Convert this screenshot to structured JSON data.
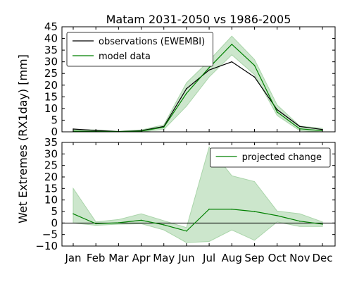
{
  "chart_data": {
    "title": "Matam 2031-2050 vs 1986-2005",
    "ylabel": "Wet Extremes (RX1day) [mm]",
    "categories": [
      "Jan",
      "Feb",
      "Mar",
      "Apr",
      "May",
      "Jun",
      "Jul",
      "Aug",
      "Sep",
      "Oct",
      "Nov",
      "Dec"
    ],
    "panels": [
      {
        "type": "line",
        "ylim": [
          0,
          45
        ],
        "yticks": [
          0,
          5,
          10,
          15,
          20,
          25,
          30,
          35,
          40,
          45
        ],
        "legend_position": "top-left",
        "series": [
          {
            "name": "observations (EWEMBI)",
            "color": "#000000",
            "values": [
              1.2,
              0.6,
              0.1,
              0.5,
              2.3,
              18.5,
              26.5,
              30,
              23.5,
              9.5,
              2.3,
              1.0
            ]
          },
          {
            "name": "model data",
            "color": "#008000",
            "values": [
              0.3,
              0.2,
              0.1,
              0.3,
              2.0,
              16.5,
              27.5,
              37.5,
              28.5,
              8.5,
              1.3,
              0.5
            ],
            "band_lower": [
              0.0,
              0.0,
              0.0,
              0.0,
              1.0,
              11.0,
              23.5,
              33.0,
              24.5,
              7.0,
              0.5,
              0.0
            ],
            "band_upper": [
              1.0,
              0.8,
              0.3,
              0.8,
              3.0,
              21.0,
              30.5,
              41.0,
              31.0,
              11.5,
              2.5,
              1.5
            ],
            "band_color": "#aad5aa"
          }
        ]
      },
      {
        "type": "line",
        "ylim": [
          -10,
          35
        ],
        "yticks": [
          -10,
          -5,
          0,
          5,
          10,
          15,
          20,
          25,
          30,
          35
        ],
        "legend_position": "top-right",
        "zero_line": true,
        "series": [
          {
            "name": "projected change",
            "color": "#008000",
            "values": [
              4,
              -0.3,
              0.1,
              1.2,
              -0.8,
              -3.5,
              6,
              6,
              5,
              3.2,
              0.8,
              -0.5
            ],
            "band_lower": [
              0,
              -1,
              -0.5,
              -0.3,
              -3,
              -8.5,
              -8,
              -3,
              -7.5,
              0.5,
              -1.5,
              -1.5
            ],
            "band_upper": [
              15,
              0.5,
              1.5,
              4.0,
              1.0,
              -2,
              33,
              20.5,
              18,
              5.2,
              4.0,
              0.5
            ],
            "band_color": "#aad5aa"
          }
        ]
      }
    ]
  }
}
